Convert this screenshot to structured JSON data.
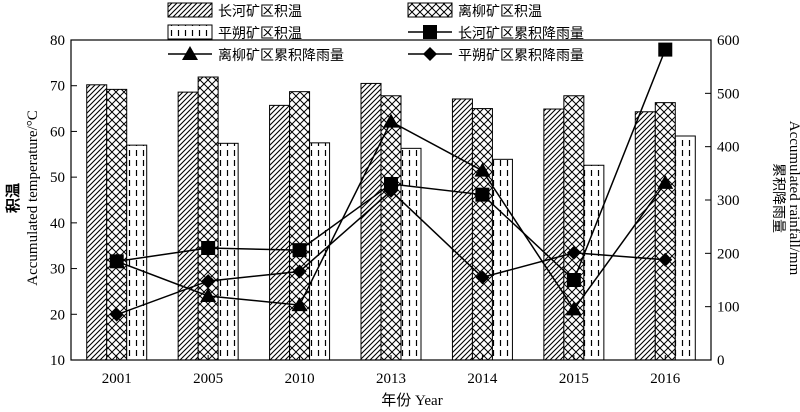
{
  "chart_data": {
    "type": "bar",
    "categories": [
      "2001",
      "2005",
      "2010",
      "2013",
      "2014",
      "2015",
      "2016"
    ],
    "xlabel": "年份 Year",
    "ylabel_cn": "积温",
    "ylabel_en": "Accumulated temperature/°C",
    "y2label_cn": "累积降雨量",
    "y2label_en": "Accumulated rainfall/mm",
    "ylim": [
      10,
      80
    ],
    "yticks": [
      "10",
      "20",
      "30",
      "40",
      "50",
      "60",
      "70",
      "80"
    ],
    "y2lim": [
      0,
      600
    ],
    "y2ticks": [
      "0",
      "100",
      "200",
      "300",
      "400",
      "500",
      "600"
    ],
    "bar_series": [
      {
        "name": "长河矿区积温",
        "pattern": "diag",
        "values": [
          70.2,
          68.6,
          65.7,
          70.5,
          67.1,
          64.9,
          64.3
        ]
      },
      {
        "name": "离柳矿区积温",
        "pattern": "cross",
        "values": [
          69.2,
          71.9,
          68.7,
          67.8,
          65.0,
          67.8,
          66.3
        ]
      },
      {
        "name": "平朔矿区积温",
        "pattern": "dash",
        "values": [
          57.0,
          57.4,
          57.5,
          56.3,
          53.9,
          52.6,
          59.0
        ]
      }
    ],
    "line_series": [
      {
        "name": "长河矿区累积降雨量",
        "marker": "square",
        "values": [
          185,
          210,
          206,
          330,
          310,
          150,
          582
        ]
      },
      {
        "name": "离柳矿区累积降雨量",
        "marker": "triangle",
        "values": [
          185,
          120,
          103,
          447,
          355,
          95,
          332
        ]
      },
      {
        "name": "平朔矿区累积降雨量",
        "marker": "diamond",
        "values": [
          85,
          148,
          166,
          317,
          155,
          201,
          188
        ]
      }
    ]
  }
}
